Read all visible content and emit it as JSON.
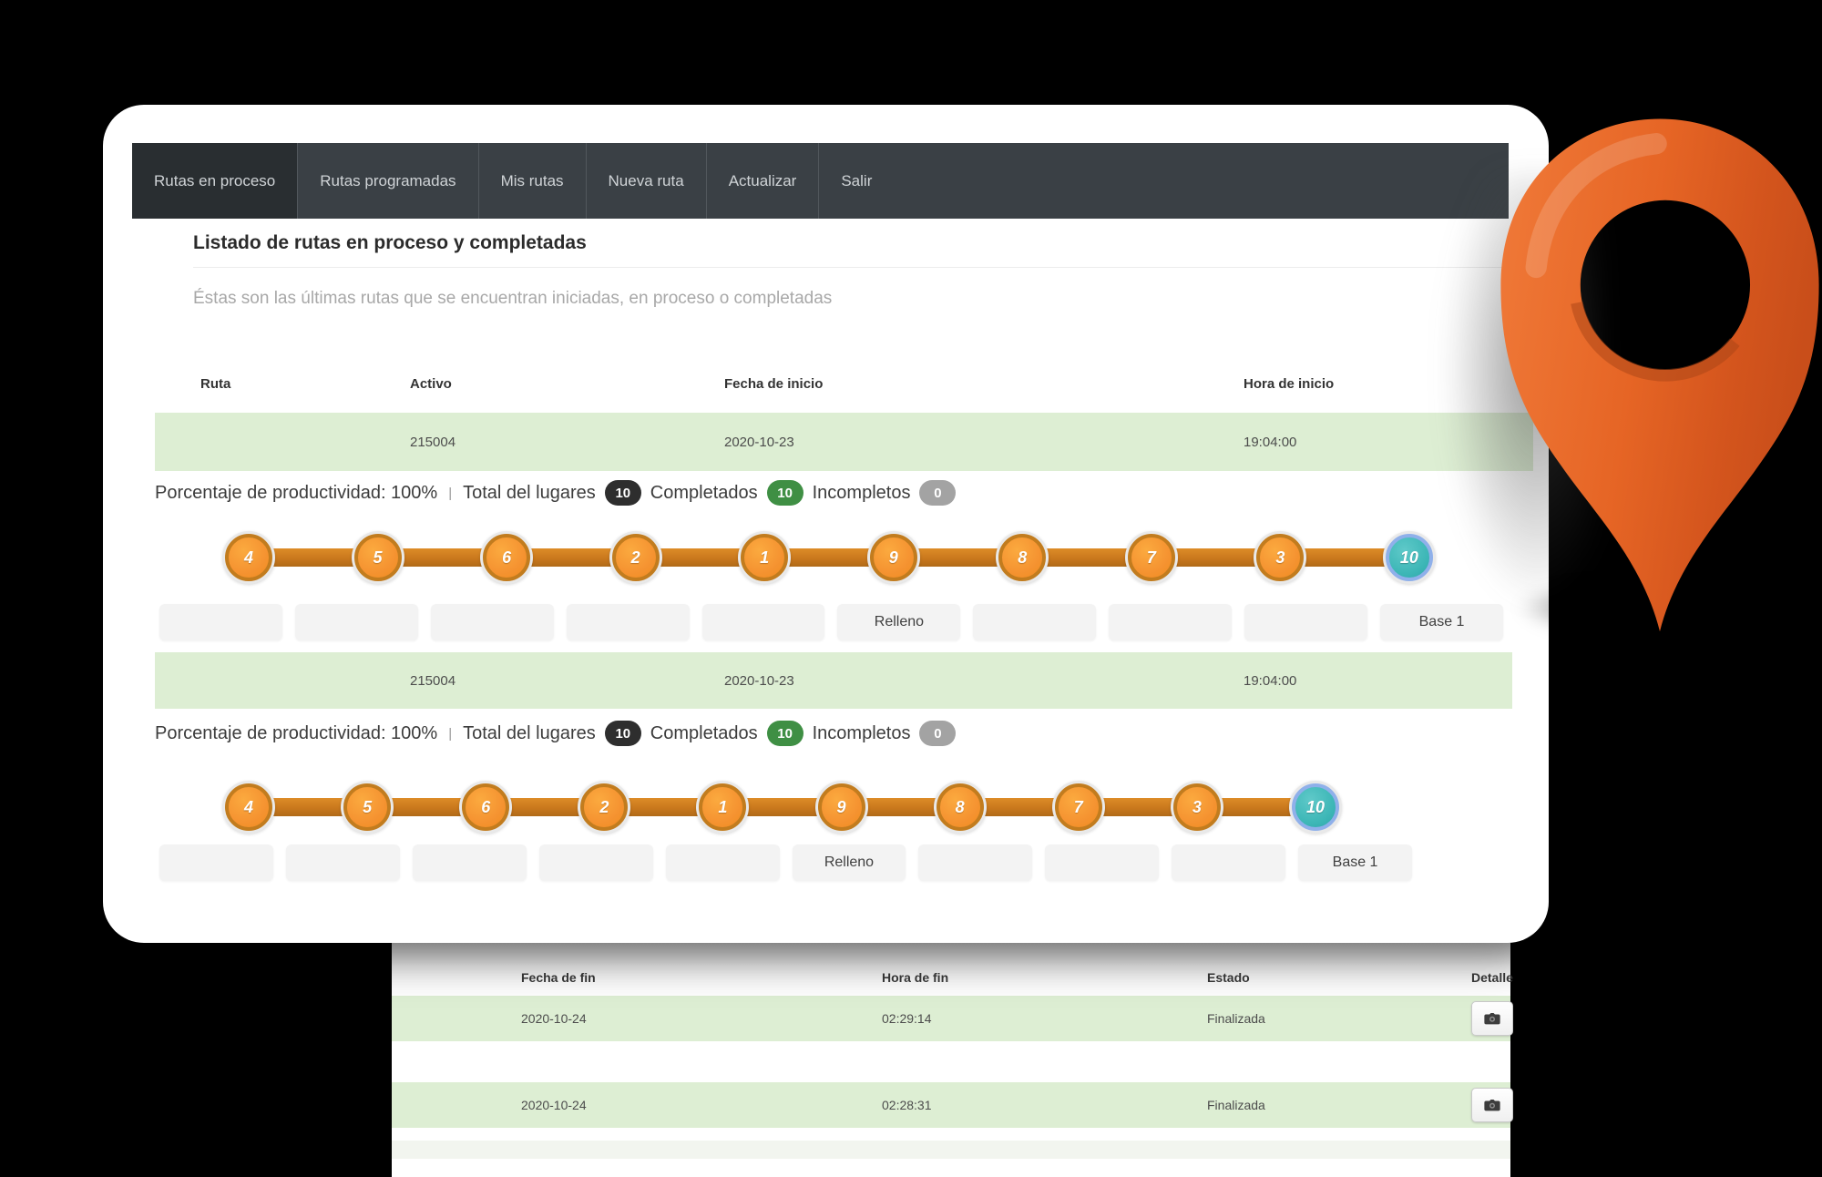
{
  "colors": {
    "navbar_bg": "#3a4045",
    "row_green": "#ddeed3",
    "badge_dark": "#2e2e2e",
    "badge_green": "#3f8f44",
    "badge_gray": "#a3a3a3",
    "stop_fill": "#f59331",
    "stop_border": "#c27c1e",
    "connector": "#c9781d",
    "connector_light": "#dd8c28",
    "connector_dark": "#b06a18",
    "base_fill": "#3cb6b6",
    "base_border": "#8fb0ea",
    "pin_orange": "#e66525"
  },
  "navbar": {
    "items": [
      {
        "label": "Rutas en proceso",
        "active": true
      },
      {
        "label": "Rutas programadas",
        "active": false
      },
      {
        "label": "Mis rutas",
        "active": false
      },
      {
        "label": "Nueva ruta",
        "active": false
      },
      {
        "label": "Actualizar",
        "active": false
      },
      {
        "label": "Salir",
        "active": false
      }
    ]
  },
  "page": {
    "title": "Listado de rutas en proceso y completadas",
    "subtitle": "Éstas son las últimas rutas que se encuentran iniciadas, en proceso o completadas"
  },
  "routes_table": {
    "headers": [
      "Ruta",
      "Activo",
      "Fecha de inicio",
      "Hora de inicio"
    ]
  },
  "route_sections": [
    {
      "row": [
        "",
        "215004",
        "2020-10-23",
        "19:04:00"
      ],
      "productivity": {
        "text": "Porcentaje de productividad: 100%",
        "separator": "|",
        "total_label": "Total del lugares",
        "total_value": "10",
        "completed_label": "Completados",
        "completed_value": "10",
        "incomplete_label": "Incompletos",
        "incomplete_value": "0"
      },
      "stops": [
        "4",
        "5",
        "6",
        "2",
        "1",
        "9",
        "8",
        "7",
        "3",
        "10"
      ],
      "base_stop_index": 9,
      "stop_labels": [
        "",
        "",
        "",
        "",
        "",
        "Relleno",
        "",
        "",
        "",
        "Base 1"
      ]
    },
    {
      "row": [
        "",
        "215004",
        "2020-10-23",
        "19:04:00"
      ],
      "productivity": {
        "text": "Porcentaje de productividad: 100%",
        "separator": "|",
        "total_label": "Total del lugares",
        "total_value": "10",
        "completed_label": "Completados",
        "completed_value": "10",
        "incomplete_label": "Incompletos",
        "incomplete_value": "0"
      },
      "stops": [
        "4",
        "5",
        "6",
        "2",
        "1",
        "9",
        "8",
        "7",
        "3",
        "10"
      ],
      "base_stop_index": 9,
      "stop_labels": [
        "",
        "",
        "",
        "",
        "",
        "Relleno",
        "",
        "",
        "",
        "Base 1"
      ]
    }
  ],
  "detail_table": {
    "headers": [
      "Fecha de fin",
      "Hora de fin",
      "Estado",
      "Detalle"
    ],
    "rows": [
      {
        "fecha_fin": "2020-10-24",
        "hora_fin": "02:29:14",
        "estado": "Finalizada",
        "detail_icon": "camera-icon"
      },
      {
        "fecha_fin": "2020-10-24",
        "hora_fin": "02:28:31",
        "estado": "Finalizada",
        "detail_icon": "camera-icon"
      }
    ]
  }
}
